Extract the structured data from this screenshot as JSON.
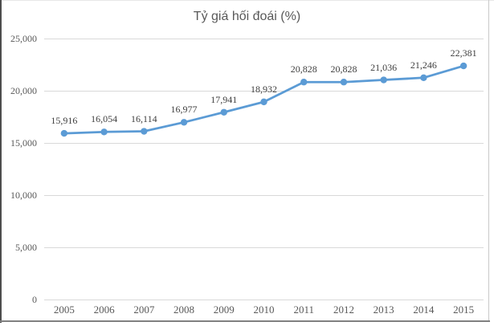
{
  "chart_data": {
    "type": "line",
    "title": "Tỷ giá hối đoái (%)",
    "categories": [
      "2005",
      "2006",
      "2007",
      "2008",
      "2009",
      "2010",
      "2011",
      "2012",
      "2013",
      "2014",
      "2015"
    ],
    "series": [
      {
        "name": "Tỷ giá hối đoái",
        "values": [
          15916,
          16054,
          16114,
          16977,
          17941,
          18932,
          20828,
          20828,
          21036,
          21246,
          22381
        ],
        "data_labels": [
          "15,916",
          "16,054",
          "16,114",
          "16,977",
          "17,941",
          "18,932",
          "20,828",
          "20,828",
          "21,036",
          "21,246",
          "22,381"
        ]
      }
    ],
    "xlabel": "",
    "ylabel": "",
    "ylim": [
      0,
      25000
    ],
    "y_ticks": [
      {
        "value": 25000,
        "label": "25,000"
      },
      {
        "value": 20000,
        "label": "20,000"
      },
      {
        "value": 15000,
        "label": "15,000"
      },
      {
        "value": 10000,
        "label": "10,000"
      },
      {
        "value": 5000,
        "label": "5,000"
      },
      {
        "value": 0,
        "label": "0"
      }
    ],
    "grid": true,
    "legend_position": "none",
    "colors": {
      "line": "#5b9bd5",
      "marker": "#5b9bd5",
      "gridline": "#d9d9d9",
      "axis_text": "#595959",
      "data_label_text": "#3f3f3f",
      "title_text": "#595959",
      "background": "#ffffff"
    }
  }
}
